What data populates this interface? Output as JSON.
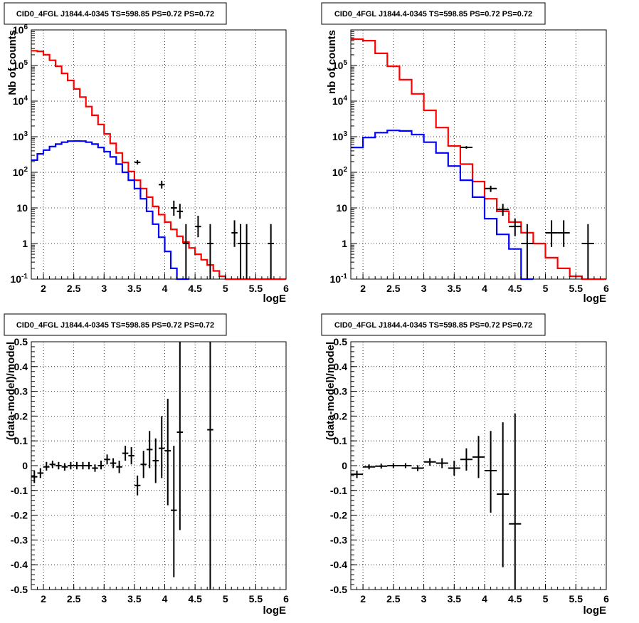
{
  "panels": [
    {
      "title": "CID0_4FGL J1844.4-0345 TS=598.85 PS=0.72 PS=0.72",
      "type": "line",
      "ylabel": "Nb of counts",
      "xlabel": "logE",
      "xlim": [
        1.8,
        6.0
      ],
      "ylim": [
        0.1,
        1000000
      ],
      "yscale": "log",
      "grid": true,
      "x_ticks": [
        "2",
        "2.5",
        "3",
        "3.5",
        "4",
        "4.5",
        "5",
        "5.5",
        "6"
      ],
      "x_tick_values": [
        2,
        2.5,
        3,
        3.5,
        4,
        4.5,
        5,
        5.5,
        6
      ],
      "y_ticks": [
        "10^-1",
        "1",
        "10",
        "10^2",
        "10^3",
        "10^4",
        "10^5",
        "10^6"
      ],
      "y_tick_values": [
        0.1,
        1,
        10,
        100,
        1000,
        10000,
        100000,
        1000000
      ],
      "histograms": [
        {
          "color": "#ff0000",
          "edges": [
            1.8,
            1.9,
            2.0,
            2.1,
            2.2,
            2.3,
            2.4,
            2.5,
            2.6,
            2.7,
            2.8,
            2.9,
            3.0,
            3.1,
            3.2,
            3.3,
            3.4,
            3.5,
            3.6,
            3.7,
            3.8,
            3.9,
            4.0,
            4.1,
            4.2,
            4.3,
            4.4,
            4.5,
            4.6,
            4.7,
            4.8,
            4.9,
            5.0,
            5.1,
            5.2,
            5.3,
            5.4,
            5.5,
            5.6,
            5.7,
            5.8,
            5.9,
            6.0
          ],
          "values": [
            260000,
            250000,
            200000,
            140000,
            95000,
            60000,
            38000,
            22000,
            13000,
            7000,
            4000,
            2200,
            1200,
            650,
            350,
            190,
            105,
            60,
            35,
            20,
            11,
            6.5,
            4.0,
            2.5,
            1.6,
            1.1,
            0.75,
            0.5,
            0.35,
            0.25,
            0.17,
            0.12,
            0.1,
            0.1,
            0.1,
            0.1,
            0.1,
            0.1,
            0.1,
            0.1,
            0.1,
            0.1
          ]
        },
        {
          "color": "#0000ff",
          "edges": [
            1.8,
            1.9,
            2.0,
            2.1,
            2.2,
            2.3,
            2.4,
            2.5,
            2.6,
            2.7,
            2.8,
            2.9,
            3.0,
            3.1,
            3.2,
            3.3,
            3.4,
            3.5,
            3.6,
            3.7,
            3.8,
            3.9,
            4.0,
            4.1,
            4.2,
            4.3,
            4.4
          ],
          "values": [
            220,
            330,
            420,
            530,
            620,
            700,
            750,
            760,
            750,
            700,
            620,
            500,
            380,
            270,
            170,
            100,
            60,
            35,
            18,
            8,
            3.5,
            1.5,
            0.6,
            0.2,
            0.1,
            0.1
          ]
        }
      ],
      "points": [
        {
          "x": 3.55,
          "y": 190,
          "xerr": 0.05,
          "ylo": 165,
          "yhi": 220
        },
        {
          "x": 3.95,
          "y": 45,
          "xerr": 0.05,
          "ylo": 35,
          "yhi": 58
        },
        {
          "x": 4.15,
          "y": 10,
          "xerr": 0.05,
          "ylo": 6,
          "yhi": 16
        },
        {
          "x": 4.25,
          "y": 8,
          "xerr": 0.05,
          "ylo": 5,
          "yhi": 13
        },
        {
          "x": 4.35,
          "y": 1,
          "xerr": 0.05,
          "ylo": 0.1,
          "yhi": 3.5
        },
        {
          "x": 4.55,
          "y": 3,
          "xerr": 0.05,
          "ylo": 1.5,
          "yhi": 6
        },
        {
          "x": 4.75,
          "y": 1,
          "xerr": 0.05,
          "ylo": 0.1,
          "yhi": 3.5
        },
        {
          "x": 5.15,
          "y": 2,
          "xerr": 0.05,
          "ylo": 0.8,
          "yhi": 4.5
        },
        {
          "x": 5.25,
          "y": 1,
          "xerr": 0.05,
          "ylo": 0.1,
          "yhi": 3.5
        },
        {
          "x": 5.35,
          "y": 1,
          "xerr": 0.05,
          "ylo": 0.1,
          "yhi": 3.5
        },
        {
          "x": 5.75,
          "y": 1,
          "xerr": 0.05,
          "ylo": 0.1,
          "yhi": 3.5
        }
      ]
    },
    {
      "title": "CID0_4FGL J1844.4-0345 TS=598.85 PS=0.72 PS=0.72",
      "type": "line",
      "ylabel": "nb of counts",
      "xlabel": "logE",
      "xlim": [
        1.8,
        6.0
      ],
      "ylim": [
        0.1,
        1000000
      ],
      "yscale": "log",
      "grid": true,
      "x_ticks": [
        "2",
        "2.5",
        "3",
        "3.5",
        "4",
        "4.5",
        "5",
        "5.5",
        "6"
      ],
      "x_tick_values": [
        2,
        2.5,
        3,
        3.5,
        4,
        4.5,
        5,
        5.5,
        6
      ],
      "y_ticks": [
        "10^-1",
        "1",
        "10",
        "10^2",
        "10^3",
        "10^4",
        "10^5"
      ],
      "y_tick_values": [
        0.1,
        1,
        10,
        100,
        1000,
        10000,
        100000
      ],
      "histograms": [
        {
          "color": "#ff0000",
          "edges": [
            1.8,
            2.0,
            2.2,
            2.4,
            2.6,
            2.8,
            3.0,
            3.2,
            3.4,
            3.6,
            3.8,
            4.0,
            4.2,
            4.4,
            4.6,
            4.8,
            5.0,
            5.2,
            5.4,
            5.6,
            5.8,
            6.0
          ],
          "values": [
            550000,
            500000,
            220000,
            95000,
            40000,
            16000,
            5500,
            1800,
            550,
            170,
            55,
            18,
            8,
            4,
            2,
            1,
            0.4,
            0.2,
            0.12,
            0.1,
            0.1
          ]
        },
        {
          "color": "#0000ff",
          "edges": [
            1.8,
            2.0,
            2.2,
            2.4,
            2.6,
            2.8,
            3.0,
            3.2,
            3.4,
            3.6,
            3.8,
            4.0,
            4.2,
            4.4,
            4.6,
            4.8
          ],
          "values": [
            500,
            950,
            1300,
            1500,
            1450,
            1150,
            700,
            350,
            150,
            60,
            20,
            5,
            1.8,
            0.7,
            0.1
          ]
        }
      ],
      "points": [
        {
          "x": 3.7,
          "y": 500,
          "xerr": 0.1,
          "ylo": 460,
          "yhi": 545
        },
        {
          "x": 4.1,
          "y": 35,
          "xerr": 0.1,
          "ylo": 28,
          "yhi": 42
        },
        {
          "x": 4.3,
          "y": 9,
          "xerr": 0.1,
          "ylo": 6,
          "yhi": 13
        },
        {
          "x": 4.5,
          "y": 3,
          "xerr": 0.1,
          "ylo": 1.6,
          "yhi": 5
        },
        {
          "x": 4.7,
          "y": 1,
          "xerr": 0.1,
          "ylo": 0.1,
          "yhi": 3.5
        },
        {
          "x": 5.1,
          "y": 2,
          "xerr": 0.1,
          "ylo": 0.8,
          "yhi": 4.5
        },
        {
          "x": 5.3,
          "y": 2,
          "xerr": 0.1,
          "ylo": 0.8,
          "yhi": 4.5
        },
        {
          "x": 5.7,
          "y": 1,
          "xerr": 0.1,
          "ylo": 0.1,
          "yhi": 3.5
        }
      ]
    },
    {
      "title": "CID0_4FGL J1844.4-0345 TS=598.85 PS=0.72 PS=0.72",
      "type": "scatter",
      "ylabel": "(data-model)/model",
      "xlabel": "logE",
      "xlim": [
        1.8,
        6.0
      ],
      "ylim": [
        -0.5,
        0.5
      ],
      "yscale": "linear",
      "grid": true,
      "x_ticks": [
        "2",
        "2.5",
        "3",
        "3.5",
        "4",
        "4.5",
        "5",
        "5.5",
        "6"
      ],
      "x_tick_values": [
        2,
        2.5,
        3,
        3.5,
        4,
        4.5,
        5,
        5.5,
        6
      ],
      "y_ticks": [
        "-0.5",
        "-0.4",
        "-0.3",
        "-0.2",
        "-0.1",
        "0",
        "0.1",
        "0.2",
        "0.3",
        "0.4",
        "0.5"
      ],
      "y_tick_values": [
        -0.5,
        -0.4,
        -0.3,
        -0.2,
        -0.1,
        0,
        0.1,
        0.2,
        0.3,
        0.4,
        0.5
      ],
      "points": [
        {
          "x": 1.85,
          "y": -0.045,
          "xerr": 0.05,
          "ylo": -0.07,
          "yhi": -0.02
        },
        {
          "x": 1.95,
          "y": -0.03,
          "xerr": 0.05,
          "ylo": -0.05,
          "yhi": -0.01
        },
        {
          "x": 2.05,
          "y": -0.005,
          "xerr": 0.05,
          "ylo": -0.02,
          "yhi": 0.015
        },
        {
          "x": 2.15,
          "y": 0.005,
          "xerr": 0.05,
          "ylo": -0.01,
          "yhi": 0.02
        },
        {
          "x": 2.25,
          "y": 0.0,
          "xerr": 0.05,
          "ylo": -0.015,
          "yhi": 0.015
        },
        {
          "x": 2.35,
          "y": -0.005,
          "xerr": 0.05,
          "ylo": -0.02,
          "yhi": 0.01
        },
        {
          "x": 2.45,
          "y": 0.0,
          "xerr": 0.05,
          "ylo": -0.015,
          "yhi": 0.015
        },
        {
          "x": 2.55,
          "y": 0.0,
          "xerr": 0.05,
          "ylo": -0.015,
          "yhi": 0.015
        },
        {
          "x": 2.65,
          "y": 0.0,
          "xerr": 0.05,
          "ylo": -0.015,
          "yhi": 0.015
        },
        {
          "x": 2.75,
          "y": 0.0,
          "xerr": 0.05,
          "ylo": -0.015,
          "yhi": 0.015
        },
        {
          "x": 2.85,
          "y": -0.01,
          "xerr": 0.05,
          "ylo": -0.025,
          "yhi": 0.005
        },
        {
          "x": 2.95,
          "y": 0.0,
          "xerr": 0.05,
          "ylo": -0.015,
          "yhi": 0.02
        },
        {
          "x": 3.05,
          "y": 0.025,
          "xerr": 0.05,
          "ylo": 0.005,
          "yhi": 0.045
        },
        {
          "x": 3.15,
          "y": 0.01,
          "xerr": 0.05,
          "ylo": -0.01,
          "yhi": 0.03
        },
        {
          "x": 3.25,
          "y": -0.005,
          "xerr": 0.05,
          "ylo": -0.03,
          "yhi": 0.02
        },
        {
          "x": 3.35,
          "y": 0.05,
          "xerr": 0.05,
          "ylo": 0.02,
          "yhi": 0.08
        },
        {
          "x": 3.45,
          "y": 0.04,
          "xerr": 0.05,
          "ylo": 0.005,
          "yhi": 0.075
        },
        {
          "x": 3.55,
          "y": -0.08,
          "xerr": 0.05,
          "ylo": -0.12,
          "yhi": -0.04
        },
        {
          "x": 3.65,
          "y": 0.005,
          "xerr": 0.05,
          "ylo": -0.05,
          "yhi": 0.06
        },
        {
          "x": 3.75,
          "y": 0.065,
          "xerr": 0.05,
          "ylo": -0.01,
          "yhi": 0.14
        },
        {
          "x": 3.85,
          "y": 0.02,
          "xerr": 0.05,
          "ylo": -0.07,
          "yhi": 0.11
        },
        {
          "x": 3.95,
          "y": 0.07,
          "xerr": 0.05,
          "ylo": -0.05,
          "yhi": 0.2
        },
        {
          "x": 4.05,
          "y": 0.06,
          "xerr": 0.05,
          "ylo": -0.16,
          "yhi": 0.27
        },
        {
          "x": 4.15,
          "y": -0.18,
          "xerr": 0.05,
          "ylo": -0.45,
          "yhi": 0.08
        },
        {
          "x": 4.25,
          "y": 0.135,
          "xerr": 0.05,
          "ylo": -0.26,
          "yhi": 0.5
        },
        {
          "x": 4.75,
          "y": 0.145,
          "xerr": 0.05,
          "ylo": -0.5,
          "yhi": 0.5
        }
      ]
    },
    {
      "title": "CID0_4FGL J1844.4-0345 TS=598.85 PS=0.72 PS=0.72",
      "type": "scatter",
      "ylabel": "(data-model)/model",
      "xlabel": "logE",
      "xlim": [
        1.8,
        6.0
      ],
      "ylim": [
        -0.5,
        0.5
      ],
      "yscale": "linear",
      "grid": true,
      "x_ticks": [
        "2",
        "2.5",
        "3",
        "3.5",
        "4",
        "4.5",
        "5",
        "5.5",
        "6"
      ],
      "x_tick_values": [
        2,
        2.5,
        3,
        3.5,
        4,
        4.5,
        5,
        5.5,
        6
      ],
      "y_ticks": [
        "-0.5",
        "-0.4",
        "-0.3",
        "-0.2",
        "-0.1",
        "0",
        "0.1",
        "0.2",
        "0.3",
        "0.4",
        "0.5"
      ],
      "y_tick_values": [
        -0.5,
        -0.4,
        -0.3,
        -0.2,
        -0.1,
        0,
        0.1,
        0.2,
        0.3,
        0.4,
        0.5
      ],
      "points": [
        {
          "x": 1.9,
          "y": -0.035,
          "xerr": 0.1,
          "ylo": -0.05,
          "yhi": -0.02
        },
        {
          "x": 2.1,
          "y": -0.005,
          "xerr": 0.1,
          "ylo": -0.015,
          "yhi": 0.005
        },
        {
          "x": 2.3,
          "y": -0.002,
          "xerr": 0.1,
          "ylo": -0.012,
          "yhi": 0.008
        },
        {
          "x": 2.5,
          "y": 0.0,
          "xerr": 0.1,
          "ylo": -0.01,
          "yhi": 0.01
        },
        {
          "x": 2.7,
          "y": 0.0,
          "xerr": 0.1,
          "ylo": -0.01,
          "yhi": 0.01
        },
        {
          "x": 2.9,
          "y": -0.01,
          "xerr": 0.1,
          "ylo": -0.022,
          "yhi": 0.002
        },
        {
          "x": 3.1,
          "y": 0.015,
          "xerr": 0.1,
          "ylo": 0.0,
          "yhi": 0.03
        },
        {
          "x": 3.3,
          "y": 0.01,
          "xerr": 0.1,
          "ylo": -0.01,
          "yhi": 0.03
        },
        {
          "x": 3.5,
          "y": -0.01,
          "xerr": 0.1,
          "ylo": -0.04,
          "yhi": 0.02
        },
        {
          "x": 3.7,
          "y": 0.025,
          "xerr": 0.1,
          "ylo": -0.02,
          "yhi": 0.07
        },
        {
          "x": 3.9,
          "y": 0.035,
          "xerr": 0.1,
          "ylo": -0.05,
          "yhi": 0.12
        },
        {
          "x": 4.1,
          "y": -0.02,
          "xerr": 0.1,
          "ylo": -0.19,
          "yhi": 0.14
        },
        {
          "x": 4.3,
          "y": -0.115,
          "xerr": 0.1,
          "ylo": -0.41,
          "yhi": 0.175
        },
        {
          "x": 4.5,
          "y": -0.235,
          "xerr": 0.1,
          "ylo": -0.5,
          "yhi": 0.21
        }
      ]
    }
  ]
}
